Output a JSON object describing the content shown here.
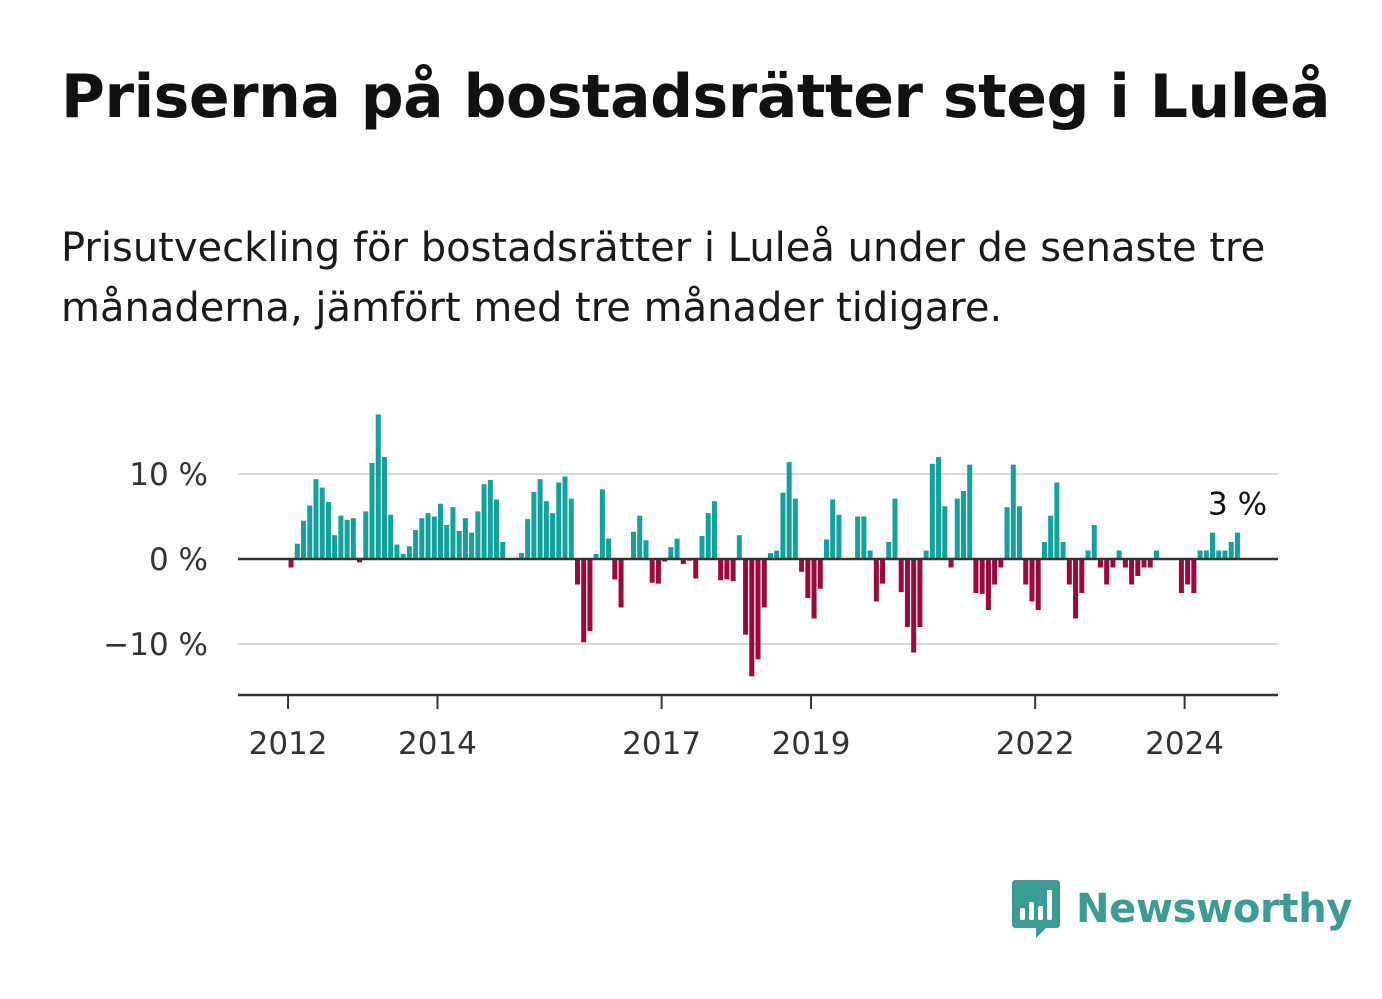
{
  "title": "Priserna på bostadsrätter steg i Luleå",
  "subtitle": "Prisutveckling för bostadsrätter i Luleå under de senaste tre månaderna, jämfört med tre månader tidigare.",
  "brand": {
    "name": "Newsworthy",
    "icon": "bar-chart-speech-bubble-icon",
    "color": "#3a9c93"
  },
  "colors": {
    "positive": "#13a29b",
    "negative": "#990b3f",
    "axis": "#333333",
    "grid": "#d9d9d9"
  },
  "chart_data": {
    "type": "bar",
    "title": "Priserna på bostadsrätter steg i Luleå",
    "xlabel": "",
    "ylabel": "",
    "unit": "%",
    "ylim": [
      -16,
      17
    ],
    "y_ticks": [
      {
        "value": 10,
        "label": "10 %"
      },
      {
        "value": 0,
        "label": "0 %"
      },
      {
        "value": -10,
        "label": "−10 %"
      }
    ],
    "x_ticks": [
      {
        "value": 2012,
        "label": "2012"
      },
      {
        "value": 2014,
        "label": "2014"
      },
      {
        "value": 2017,
        "label": "2017"
      },
      {
        "value": 2019,
        "label": "2019"
      },
      {
        "value": 2022,
        "label": "2022"
      },
      {
        "value": 2024,
        "label": "2024"
      }
    ],
    "x_range": [
      2011.33,
      2025.25
    ],
    "start": {
      "year": 2012,
      "month": 1
    },
    "values": [
      -1,
      1.8,
      4.5,
      6.3,
      9.4,
      8.4,
      6.7,
      2.8,
      5.1,
      4.6,
      4.8,
      -0.4,
      5.6,
      11.3,
      17.0,
      12.0,
      5.2,
      1.7,
      0.6,
      1.5,
      3.4,
      4.8,
      5.4,
      5.0,
      6.5,
      4.0,
      6.1,
      3.3,
      4.8,
      3.1,
      5.6,
      8.8,
      9.3,
      7.0,
      2.0,
      0,
      0,
      0.7,
      4.7,
      7.9,
      9.4,
      6.8,
      5.4,
      9.0,
      9.7,
      7.1,
      -3.0,
      -9.8,
      -8.5,
      0.6,
      8.2,
      2.4,
      -2.4,
      -5.7,
      0,
      3.2,
      5.1,
      2.2,
      -2.8,
      -2.9,
      -0.3,
      1.4,
      2.4,
      -0.6,
      -0.2,
      -2.3,
      2.7,
      5.4,
      6.8,
      -2.5,
      -2.4,
      -2.6,
      2.8,
      -8.9,
      -13.8,
      -11.8,
      -5.7,
      0.7,
      1.0,
      7.8,
      11.4,
      7.1,
      -1.5,
      -4.6,
      -7.0,
      -3.5,
      2.3,
      7.0,
      5.2,
      0,
      0,
      5.0,
      5.0,
      1.0,
      -5.0,
      -2.9,
      2.0,
      7.1,
      -3.9,
      -8.0,
      -11.0,
      -8.0,
      1.0,
      11.2,
      12.0,
      6.2,
      -1.0,
      7.1,
      8.0,
      11.1,
      -4.0,
      -4.1,
      -6.0,
      -3.0,
      -1.0,
      6.1,
      11.1,
      6.2,
      -3.0,
      -5.0,
      -6.0,
      2.0,
      5.1,
      9.0,
      2.0,
      -3.0,
      -7.0,
      -4.0,
      1.0,
      4.0,
      -1.0,
      -3.0,
      -1.0,
      1.0,
      -1.0,
      -3.0,
      -2.0,
      -1.0,
      -1.0,
      1.0,
      0,
      0,
      0,
      -4.0,
      -3.0,
      -4.0,
      1.0,
      1.0,
      3.1,
      1.0,
      1.0,
      2.0,
      3.1
    ],
    "annotation": {
      "text": "3 %",
      "target": "last-bar"
    }
  }
}
